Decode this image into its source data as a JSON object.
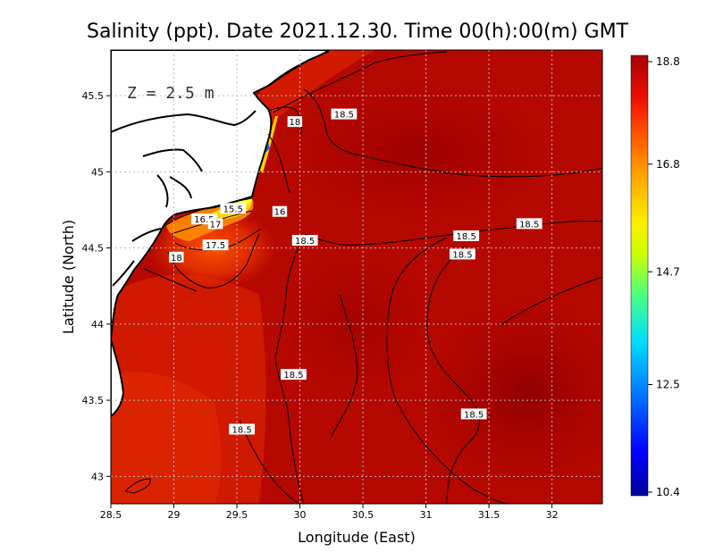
{
  "title": "Salinity (ppt). Date 2021.12.30. Time 00(h):00(m) GMT",
  "depth_label": "Z = 2.5 m",
  "x_axis": {
    "label": "Longitude (East)",
    "range": [
      28.5,
      32.4
    ],
    "ticks": [
      {
        "value": 28.5,
        "label": "28.5"
      },
      {
        "value": 29,
        "label": "29"
      },
      {
        "value": 29.5,
        "label": "29.5"
      },
      {
        "value": 30,
        "label": "30"
      },
      {
        "value": 30.5,
        "label": "30.5"
      },
      {
        "value": 31,
        "label": "31"
      },
      {
        "value": 31.5,
        "label": "31.5"
      },
      {
        "value": 32,
        "label": "32"
      }
    ]
  },
  "y_axis": {
    "label": "Latitude (North)",
    "range": [
      42.82,
      45.8
    ],
    "ticks": [
      {
        "value": 43,
        "label": "43"
      },
      {
        "value": 43.5,
        "label": "43.5"
      },
      {
        "value": 44,
        "label": "44"
      },
      {
        "value": 44.5,
        "label": "44.5"
      },
      {
        "value": 45,
        "label": "45"
      },
      {
        "value": 45.5,
        "label": "45.5"
      }
    ]
  },
  "colorbar": {
    "range": [
      10.4,
      18.8
    ],
    "ticks": [
      {
        "value": 18.8,
        "label": "18.8"
      },
      {
        "value": 16.8,
        "label": "16.8"
      },
      {
        "value": 14.7,
        "label": "14.7"
      },
      {
        "value": 12.5,
        "label": "12.5"
      },
      {
        "value": 10.4,
        "label": "10.4"
      }
    ],
    "colors": [
      "#000099",
      "#0000ff",
      "#0088ff",
      "#00ddff",
      "#44ff88",
      "#ccff00",
      "#ffee00",
      "#ffaa00",
      "#ff5500",
      "#ee1100",
      "#aa0000"
    ]
  },
  "contour_labels": [
    {
      "text": "18",
      "lon": 29.96,
      "lat": 45.33
    },
    {
      "text": "18.5",
      "lon": 30.35,
      "lat": 45.38
    },
    {
      "text": "15.5",
      "lon": 29.47,
      "lat": 44.76
    },
    {
      "text": "16",
      "lon": 29.84,
      "lat": 44.74
    },
    {
      "text": "16.5",
      "lon": 29.24,
      "lat": 44.69
    },
    {
      "text": "17",
      "lon": 29.33,
      "lat": 44.66
    },
    {
      "text": "18.5",
      "lon": 31.82,
      "lat": 44.66
    },
    {
      "text": "18.5",
      "lon": 31.32,
      "lat": 44.58
    },
    {
      "text": "18.5",
      "lon": 30.04,
      "lat": 44.55
    },
    {
      "text": "17.5",
      "lon": 29.33,
      "lat": 44.52
    },
    {
      "text": "18.5",
      "lon": 31.29,
      "lat": 44.46
    },
    {
      "text": "18",
      "lon": 29.02,
      "lat": 44.44
    },
    {
      "text": "18.5",
      "lon": 29.95,
      "lat": 43.67
    },
    {
      "text": "18.5",
      "lon": 31.38,
      "lat": 43.41
    },
    {
      "text": "18.5",
      "lon": 29.54,
      "lat": 43.31
    }
  ],
  "colors": {
    "sea_dark": "#a80000",
    "sea_mid": "#c81200",
    "sea_light": "#e02a00",
    "land": "#ffffff",
    "coast": "#000000",
    "grid": "#bbbbbb"
  }
}
